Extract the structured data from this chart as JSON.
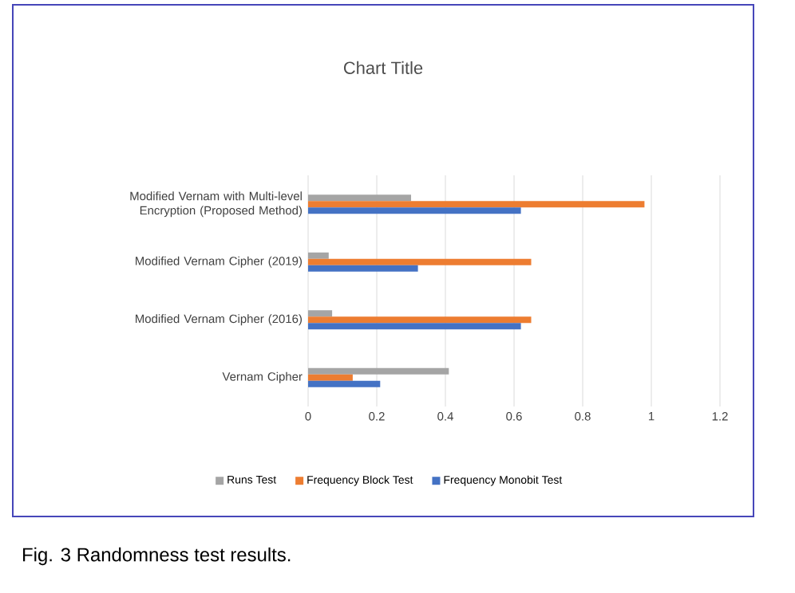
{
  "chart_data": {
    "type": "bar",
    "orientation": "horizontal",
    "title": "Chart Title",
    "categories": [
      "Modified Vernam with Multi-level Encryption (Proposed Method)",
      "Modified Vernam Cipher (2019)",
      "Modified Vernam Cipher (2016)",
      "Vernam Cipher"
    ],
    "series": [
      {
        "name": "Runs Test",
        "color": "#a5a5a5",
        "values": [
          0.3,
          0.06,
          0.07,
          0.41
        ]
      },
      {
        "name": "Frequency Block Test",
        "color": "#ed7d31",
        "values": [
          0.98,
          0.65,
          0.65,
          0.13
        ]
      },
      {
        "name": "Frequency Monobit Test",
        "color": "#4472c4",
        "values": [
          0.62,
          0.32,
          0.62,
          0.21
        ]
      }
    ],
    "xlim": [
      0,
      1.2
    ],
    "xticks": [
      0,
      0.2,
      0.4,
      0.6,
      0.8,
      1,
      1.2
    ],
    "grid": "x",
    "legend": "bottom",
    "annotations": [
      "Fig. 3 Randomness test results."
    ]
  }
}
